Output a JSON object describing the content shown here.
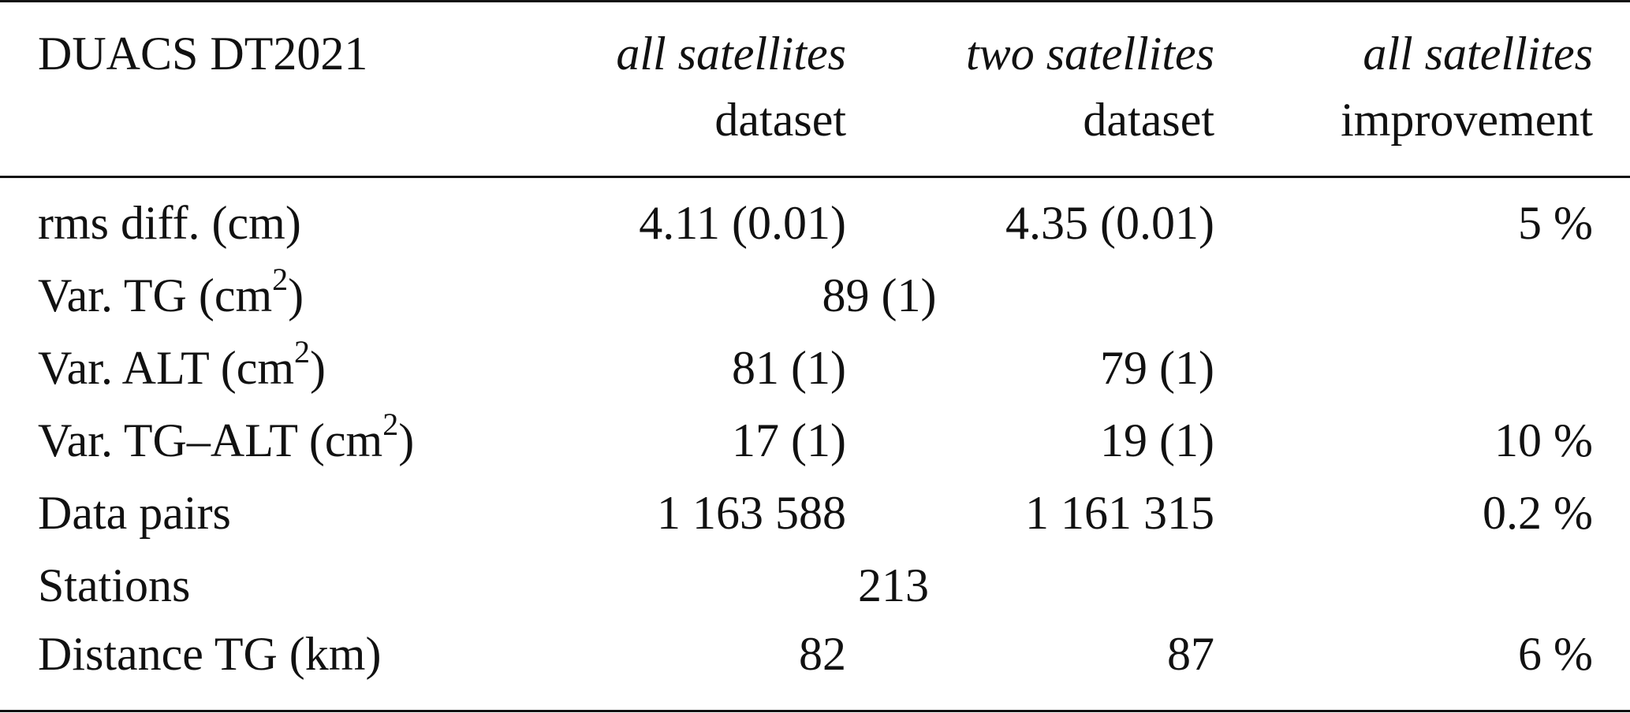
{
  "table": {
    "header": {
      "col0": "DUACS DT2021",
      "col1_line1": "all satellites",
      "col1_line2": "dataset",
      "col2_line1": "two satellites",
      "col2_line2": "dataset",
      "col3_line1": "all satellites",
      "col3_line2": "improvement"
    },
    "rows": [
      {
        "label": "rms diff. (cm)",
        "all": "4.11 (0.01)",
        "two": "4.35 (0.01)",
        "improvement": "5 %"
      },
      {
        "label_pre": "Var. TG (cm",
        "label_sup": "2",
        "label_post": ")",
        "merged": "89 (1)"
      },
      {
        "label_pre": "Var. ALT (cm",
        "label_sup": "2",
        "label_post": ")",
        "all": "81 (1)",
        "two": "79 (1)"
      },
      {
        "label_pre": "Var. TG–ALT (cm",
        "label_sup": "2",
        "label_post": ")",
        "all": "17 (1)",
        "two": "19 (1)",
        "improvement": "10 %"
      },
      {
        "label": "Data pairs",
        "all": "1 163 588",
        "two": "1 161 315",
        "improvement": "0.2 %"
      },
      {
        "label": "Stations",
        "merged": "213"
      },
      {
        "label": "Distance TG (km)",
        "all": "82",
        "two": "87",
        "improvement": "6 %"
      }
    ]
  }
}
